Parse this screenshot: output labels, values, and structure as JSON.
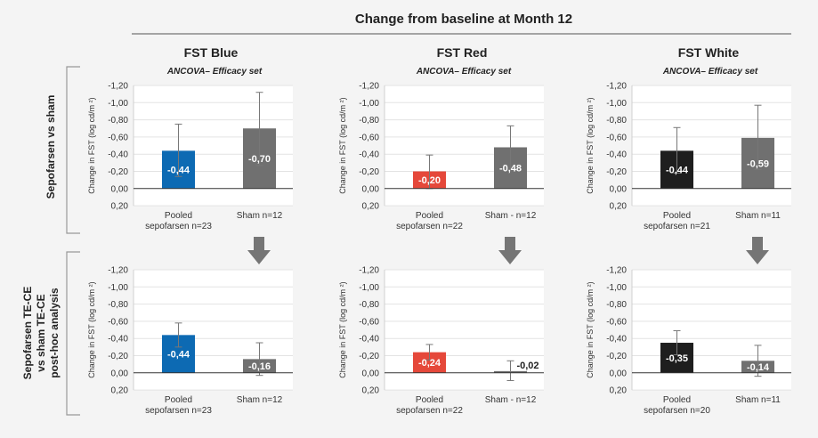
{
  "header": {
    "title": "Change from baseline at Month 12"
  },
  "columns": [
    {
      "title": "FST Blue",
      "subtitle": "ANCOVA– Efficacy set"
    },
    {
      "title": "FST Red",
      "subtitle": "ANCOVA– Efficacy set"
    },
    {
      "title": "FST White",
      "subtitle": "ANCOVA– Efficacy set"
    }
  ],
  "rows": [
    {
      "label_lines": [
        "Sepofarsen vs sham"
      ]
    },
    {
      "label_lines": [
        "Sepofarsen TE-CE",
        "vs sham TE-CE",
        "post-hoc analysis"
      ]
    }
  ],
  "colors": {
    "blue": "#0d6ab3",
    "red": "#e5483a",
    "black": "#1e1e1e",
    "sham": "#707070",
    "arrow": "#757575",
    "bracket": "#999999"
  },
  "chart_data": [
    {
      "type": "bar",
      "row": 0,
      "col": 0,
      "ylabel": "Change in FST (log cd/m ²)",
      "ylim": [
        -1.2,
        0.2
      ],
      "inverted_axis": true,
      "yticks": [
        "-1,20",
        "-1,00",
        "-0,80",
        "-0,60",
        "-0,40",
        "-0,20",
        "0,00",
        "0,20"
      ],
      "categories": [
        [
          "Pooled",
          "sepofarsen n=23"
        ],
        [
          "Sham n=12"
        ]
      ],
      "bars": [
        {
          "value": -0.44,
          "label": "-0,44",
          "err_low": 0.14,
          "err_high": 0.75,
          "color": "#0d6ab3",
          "label_outside": false
        },
        {
          "value": -0.7,
          "label": "-0,70",
          "err_low": 0.27,
          "err_high": 1.12,
          "color": "#707070",
          "label_outside": false
        }
      ]
    },
    {
      "type": "bar",
      "row": 0,
      "col": 1,
      "ylabel": "Change in FST (log cd/m ²)",
      "ylim": [
        -1.2,
        0.2
      ],
      "inverted_axis": true,
      "yticks": [
        "-1,20",
        "-1,00",
        "-0,80",
        "-0,60",
        "-0,40",
        "-0,20",
        "0,00",
        "0,20"
      ],
      "categories": [
        [
          "Pooled",
          "sepofarsen n=22"
        ],
        [
          "Sham - n=12"
        ]
      ],
      "bars": [
        {
          "value": -0.2,
          "label": "-0,20",
          "err_low": 0.0,
          "err_high": 0.39,
          "color": "#e5483a",
          "label_outside": false
        },
        {
          "value": -0.48,
          "label": "-0,48",
          "err_low": 0.22,
          "err_high": 0.73,
          "color": "#707070",
          "label_outside": false
        }
      ]
    },
    {
      "type": "bar",
      "row": 0,
      "col": 2,
      "ylabel": "Change in FST (log cd/m ²)",
      "ylim": [
        -1.2,
        0.2
      ],
      "inverted_axis": true,
      "yticks": [
        "-1,20",
        "-1,00",
        "-0,80",
        "-0,60",
        "-0,40",
        "-0,20",
        "0,00",
        "0,20"
      ],
      "categories": [
        [
          "Pooled",
          "sepofarsen n=21"
        ],
        [
          "Sham n=11"
        ]
      ],
      "bars": [
        {
          "value": -0.44,
          "label": "-0,44",
          "err_low": 0.18,
          "err_high": 0.71,
          "color": "#1e1e1e",
          "label_outside": false
        },
        {
          "value": -0.59,
          "label": "-0,59",
          "err_low": 0.22,
          "err_high": 0.97,
          "color": "#707070",
          "label_outside": false
        }
      ]
    },
    {
      "type": "bar",
      "row": 1,
      "col": 0,
      "ylabel": "Change in FST (log cd/m ²)",
      "ylim": [
        -1.2,
        0.2
      ],
      "inverted_axis": true,
      "yticks": [
        "-1,20",
        "-1,00",
        "-0,80",
        "-0,60",
        "-0,40",
        "-0,20",
        "0,00",
        "0,20"
      ],
      "categories": [
        [
          "Pooled",
          "sepofarsen n=23"
        ],
        [
          "Sham n=12"
        ]
      ],
      "bars": [
        {
          "value": -0.44,
          "label": "-0,44",
          "err_low": 0.3,
          "err_high": 0.58,
          "color": "#0d6ab3",
          "label_outside": false
        },
        {
          "value": -0.16,
          "label": "-0,16",
          "err_low": -0.03,
          "err_high": 0.35,
          "color": "#707070",
          "label_outside": false
        }
      ]
    },
    {
      "type": "bar",
      "row": 1,
      "col": 1,
      "ylabel": "Change in FST (log cd/m ²)",
      "ylim": [
        -1.2,
        0.2
      ],
      "inverted_axis": true,
      "yticks": [
        "-1,20",
        "-1,00",
        "-0,80",
        "-0,60",
        "-0,40",
        "-0,20",
        "0,00",
        "0,20"
      ],
      "categories": [
        [
          "Pooled",
          "sepofarsen n=22"
        ],
        [
          "Sham - n=12"
        ]
      ],
      "bars": [
        {
          "value": -0.24,
          "label": "-0,24",
          "err_low": 0.15,
          "err_high": 0.33,
          "color": "#e5483a",
          "label_outside": false
        },
        {
          "value": -0.02,
          "label": "-0,02",
          "err_low": -0.09,
          "err_high": 0.14,
          "color": "#707070",
          "label_outside": true
        }
      ]
    },
    {
      "type": "bar",
      "row": 1,
      "col": 2,
      "ylabel": "Change in FST (log cd/m ²)",
      "ylim": [
        -1.2,
        0.2
      ],
      "inverted_axis": true,
      "yticks": [
        "-1,20",
        "-1,00",
        "-0,80",
        "-0,60",
        "-0,40",
        "-0,20",
        "0,00",
        "0,20"
      ],
      "categories": [
        [
          "Pooled",
          "sepofarsen n=20"
        ],
        [
          "Sham n=11"
        ]
      ],
      "bars": [
        {
          "value": -0.35,
          "label": "-0,35",
          "err_low": 0.21,
          "err_high": 0.49,
          "color": "#1e1e1e",
          "label_outside": false
        },
        {
          "value": -0.14,
          "label": "-0,14",
          "err_low": -0.04,
          "err_high": 0.32,
          "color": "#707070",
          "label_outside": false
        }
      ]
    }
  ]
}
